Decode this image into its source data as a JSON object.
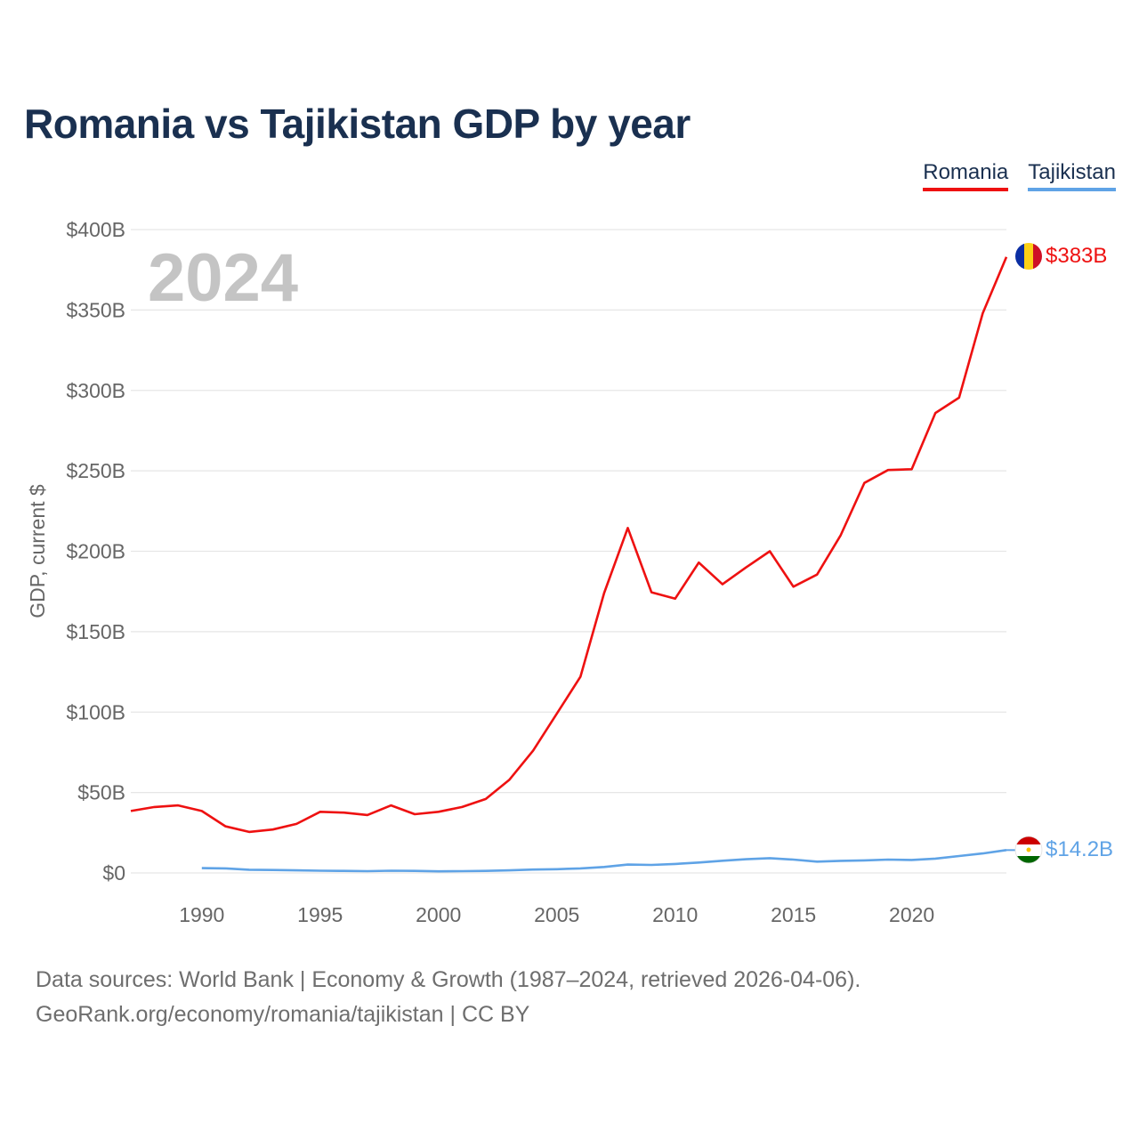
{
  "title": "Romania vs Tajikistan GDP by year",
  "legend": [
    {
      "label": "Romania",
      "color": "#ee1111"
    },
    {
      "label": "Tajikistan",
      "color": "#5fa3e6"
    }
  ],
  "source": {
    "line1": "Data sources: World Bank | Economy & Growth (1987–2024, retrieved 2026-04-06).",
    "line2": "GeoRank.org/economy/romania/tajikistan | CC BY"
  },
  "chart_data": {
    "type": "line",
    "title": "Romania vs Tajikistan GDP by year",
    "year_watermark": "2024",
    "xlabel": "",
    "ylabel": "GDP, current $",
    "xlim": [
      1987,
      2024
    ],
    "ylim": [
      0,
      400
    ],
    "x_ticks": [
      1990,
      1995,
      2000,
      2005,
      2010,
      2015,
      2020
    ],
    "y_ticks": [
      {
        "value": 0,
        "label": "$0"
      },
      {
        "value": 50,
        "label": "$50B"
      },
      {
        "value": 100,
        "label": "$100B"
      },
      {
        "value": 150,
        "label": "$150B"
      },
      {
        "value": 200,
        "label": "$200B"
      },
      {
        "value": 250,
        "label": "$250B"
      },
      {
        "value": 300,
        "label": "$300B"
      },
      {
        "value": 350,
        "label": "$350B"
      },
      {
        "value": 400,
        "label": "$400B"
      }
    ],
    "grid": true,
    "series": [
      {
        "name": "Romania",
        "color": "#ee1111",
        "end_label": "$383B",
        "x": [
          1987,
          1988,
          1989,
          1990,
          1991,
          1992,
          1993,
          1994,
          1995,
          1996,
          1997,
          1998,
          1999,
          2000,
          2001,
          2002,
          2003,
          2004,
          2005,
          2006,
          2007,
          2008,
          2009,
          2010,
          2011,
          2012,
          2013,
          2014,
          2015,
          2016,
          2017,
          2018,
          2019,
          2020,
          2021,
          2022,
          2023,
          2024
        ],
        "values": [
          38.5,
          41,
          42,
          38.5,
          29,
          25.5,
          27,
          30.5,
          38,
          37.5,
          36,
          42,
          36.5,
          38,
          41,
          46,
          58,
          76,
          99,
          122,
          174,
          214.5,
          174.5,
          170.5,
          193,
          179.5,
          190,
          200,
          178,
          185.5,
          210,
          242.5,
          250.5,
          251,
          286,
          295.5,
          348,
          383
        ]
      },
      {
        "name": "Tajikistan",
        "color": "#5fa3e6",
        "end_label": "$14.2B",
        "x": [
          1990,
          1991,
          1992,
          1993,
          1994,
          1995,
          1996,
          1997,
          1998,
          1999,
          2000,
          2001,
          2002,
          2003,
          2004,
          2005,
          2006,
          2007,
          2008,
          2009,
          2010,
          2011,
          2012,
          2013,
          2014,
          2015,
          2016,
          2017,
          2018,
          2019,
          2020,
          2021,
          2022,
          2023,
          2024
        ],
        "values": [
          3.0,
          2.8,
          2.0,
          1.8,
          1.6,
          1.4,
          1.3,
          1.1,
          1.4,
          1.3,
          1.0,
          1.1,
          1.3,
          1.6,
          2.1,
          2.3,
          2.8,
          3.7,
          5.2,
          5.0,
          5.6,
          6.5,
          7.6,
          8.5,
          9.2,
          8.3,
          7.0,
          7.5,
          7.8,
          8.3,
          8.1,
          8.9,
          10.5,
          12.1,
          14.2
        ]
      }
    ]
  }
}
